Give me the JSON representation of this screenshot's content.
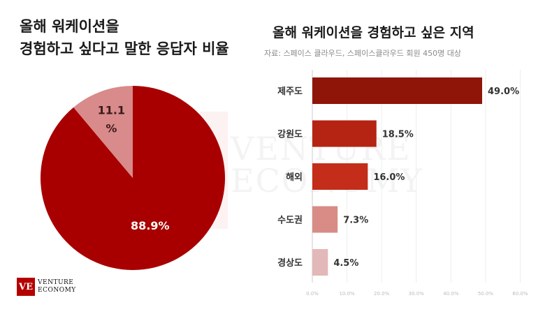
{
  "left_title_line1": "올해 워케이션을",
  "left_title_line2": "경험하고 싶다고 말한 응답자 비율",
  "right_title": "올해 워케이션을 경험하고 싶은 지역",
  "source": "자료: 스페이스 클라우드, 스페이스클라우드 회원 450명 대상",
  "logo": {
    "mark": "VE",
    "line1": "VENTURE",
    "line2": "ECONOMY"
  },
  "watermark": {
    "line1": "VENTURE",
    "line2": "ECONOMY"
  },
  "chart_data": [
    {
      "type": "pie",
      "title": "올해 워케이션을 경험하고 싶다고 말한 응답자 비율",
      "labels": [
        "",
        ""
      ],
      "values": [
        88.9,
        11.1
      ],
      "data_labels": [
        "88.9%",
        "11.1 %"
      ],
      "colors": [
        "#a80000",
        "#d98a8a"
      ]
    },
    {
      "type": "bar",
      "orientation": "horizontal",
      "title": "올해 워케이션을 경험하고 싶은 지역",
      "categories": [
        "제주도",
        "강원도",
        "해외",
        "수도권",
        "경상도"
      ],
      "values": [
        49.0,
        18.5,
        16.0,
        7.3,
        4.5
      ],
      "data_labels": [
        "49.0%",
        "18.5%",
        "16.0%",
        "7.3%",
        "4.5%"
      ],
      "colors": [
        "#8f1508",
        "#b52412",
        "#c42d1a",
        "#d98b85",
        "#e3b8b8"
      ],
      "xlim": [
        0,
        60
      ],
      "x_ticks": [
        "0.0%",
        "10.0%",
        "20.0%",
        "30.0%",
        "40.0%",
        "50.0%",
        "60.0%"
      ],
      "grid": true
    }
  ]
}
